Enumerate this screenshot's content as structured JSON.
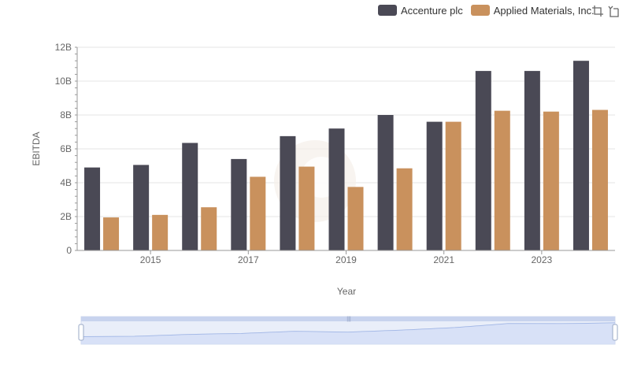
{
  "chart_data": {
    "type": "bar",
    "x": [
      2014,
      2015,
      2016,
      2017,
      2018,
      2019,
      2020,
      2021,
      2022,
      2023,
      2024
    ],
    "x_tick_labels": [
      "2015",
      "2017",
      "2019",
      "2021",
      "2023"
    ],
    "series": [
      {
        "name": "Accenture plc",
        "color": "#4a4955",
        "values": [
          4.9,
          5.05,
          6.35,
          5.4,
          6.75,
          7.2,
          8.0,
          7.6,
          10.6,
          10.6,
          11.2
        ]
      },
      {
        "name": "Applied Materials, Inc.",
        "color": "#c9915d",
        "values": [
          1.95,
          2.1,
          2.55,
          4.35,
          4.95,
          3.75,
          4.85,
          7.6,
          8.25,
          8.2,
          8.3
        ]
      }
    ],
    "xlabel": "Year",
    "ylabel": "EBITDA",
    "ylim": [
      0,
      12
    ],
    "y_ticks": [
      0,
      2,
      4,
      6,
      8,
      10,
      12
    ],
    "y_tick_labels": [
      "0",
      "2B",
      "4B",
      "6B",
      "8B",
      "10B",
      "12B"
    ],
    "grid": true,
    "legend_position": "top-right"
  },
  "toolbox": {
    "icons": [
      "zoom-icon",
      "restore-icon"
    ]
  }
}
